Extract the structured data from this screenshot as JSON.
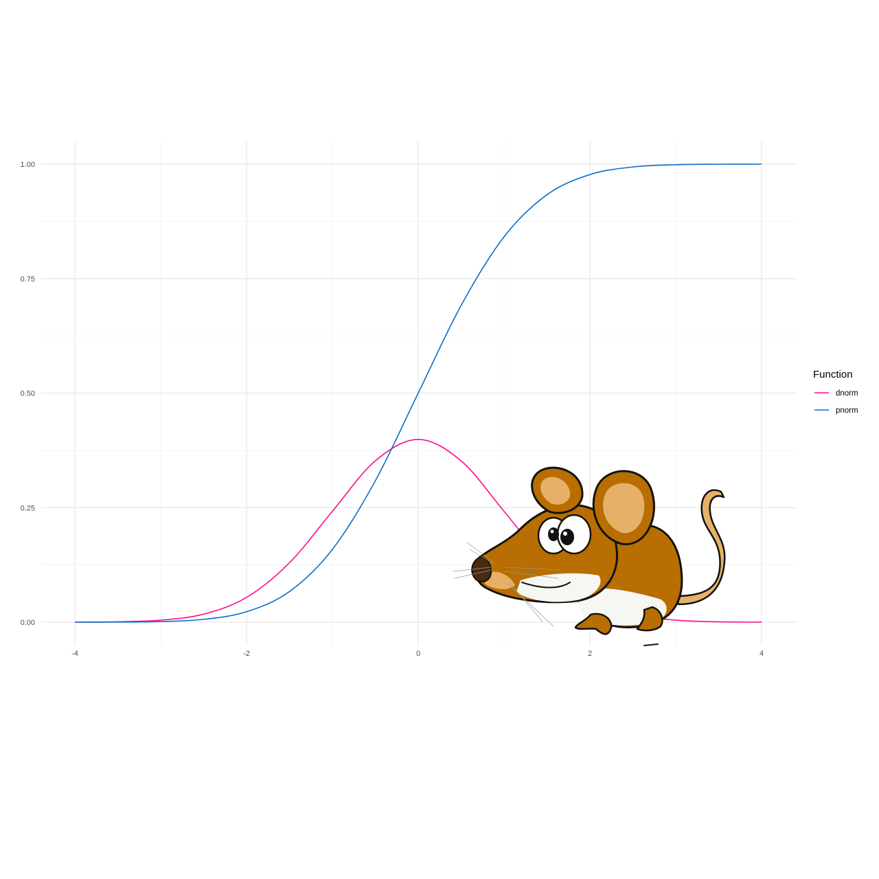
{
  "chart_data": {
    "type": "line",
    "title": "",
    "xlabel": "",
    "ylabel": "",
    "xlim": [
      -4,
      4
    ],
    "ylim": [
      0,
      1
    ],
    "x_ticks": [
      -4,
      -2,
      0,
      2,
      4
    ],
    "x_tick_labels": [
      "-4",
      "-2",
      "0",
      "2",
      "4"
    ],
    "y_ticks": [
      0,
      0.25,
      0.5,
      0.75,
      1
    ],
    "y_tick_labels": [
      "0.00",
      "0.25",
      "0.50",
      "0.75",
      "1.00"
    ],
    "grid": true,
    "legend": {
      "title": "Function",
      "position": "right"
    },
    "x": [
      -4,
      -3.5,
      -3,
      -2.5,
      -2,
      -1.5,
      -1,
      -0.5,
      0,
      0.5,
      1,
      1.5,
      2,
      2.5,
      3,
      3.5,
      4
    ],
    "series": [
      {
        "name": "dnorm",
        "color": "#ff0a8c",
        "values": [
          0.0001,
          0.0009,
          0.0044,
          0.0175,
          0.054,
          0.1295,
          0.242,
          0.3521,
          0.3989,
          0.3521,
          0.242,
          0.1295,
          0.054,
          0.0175,
          0.0044,
          0.0009,
          0.0001
        ]
      },
      {
        "name": "pnorm",
        "color": "#0a6ccc",
        "values": [
          0.0,
          0.0002,
          0.0013,
          0.0062,
          0.0228,
          0.0668,
          0.1587,
          0.3085,
          0.5,
          0.6915,
          0.8413,
          0.9332,
          0.9772,
          0.9938,
          0.9987,
          0.9998,
          1.0
        ]
      }
    ]
  },
  "illustration": {
    "icon": "mouse-cartoon-icon"
  }
}
